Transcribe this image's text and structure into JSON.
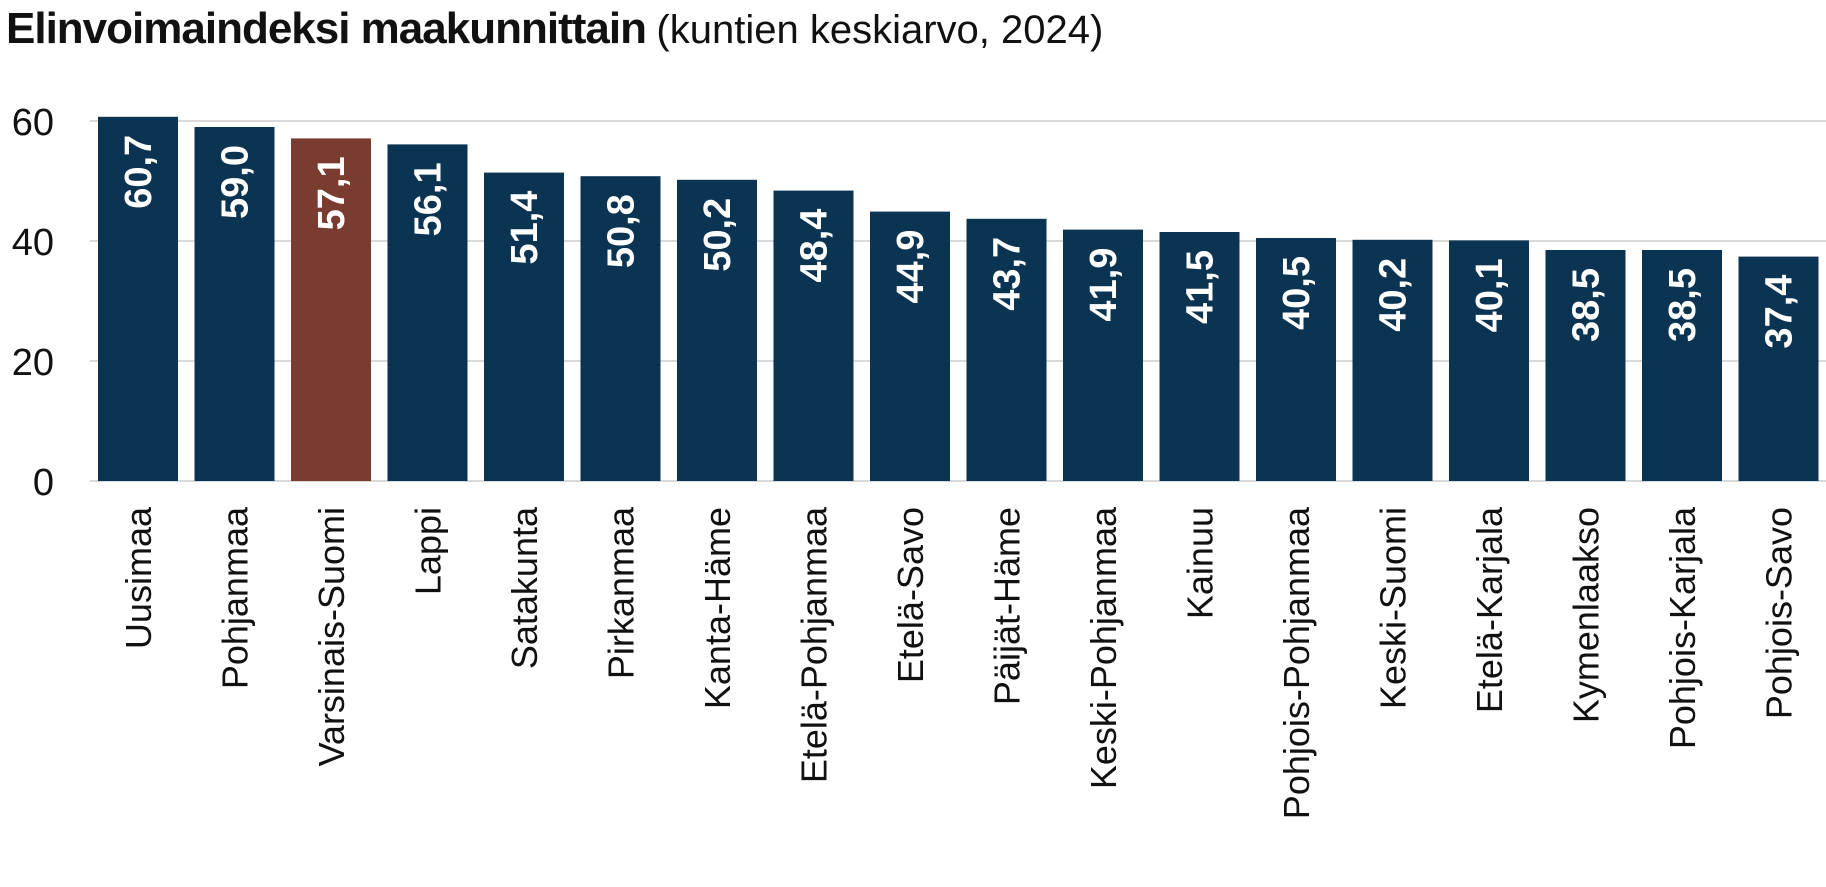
{
  "chart_data": {
    "type": "bar",
    "title": "Elinvoimaindeksi maakunnittain",
    "subtitle": "(kuntien keskiarvo, 2024)",
    "categories": [
      "Uusimaa",
      "Pohjanmaa",
      "Varsinais-Suomi",
      "Lappi",
      "Satakunta",
      "Pirkanmaa",
      "Kanta-Häme",
      "Etelä-Pohjanmaa",
      "Etelä-Savo",
      "Päijät-Häme",
      "Keski-Pohjanmaa",
      "Kainuu",
      "Pohjois-Pohjanmaa",
      "Keski-Suomi",
      "Etelä-Karjala",
      "Kymenlaakso",
      "Pohjois-Karjala",
      "Pohjois-Savo"
    ],
    "values": [
      60.7,
      59.0,
      57.1,
      56.1,
      51.4,
      50.8,
      50.2,
      48.4,
      44.9,
      43.7,
      41.9,
      41.5,
      40.5,
      40.2,
      40.1,
      38.5,
      38.5,
      37.4
    ],
    "value_labels": [
      "60,7",
      "59,0",
      "57,1",
      "56,1",
      "51,4",
      "50,8",
      "50,2",
      "48,4",
      "44,9",
      "43,7",
      "41,9",
      "41,5",
      "40,5",
      "40,2",
      "40,1",
      "38,5",
      "38,5",
      "37,4"
    ],
    "y_ticks": [
      0,
      20,
      40,
      60
    ],
    "ylim": [
      0,
      62
    ],
    "grid": true,
    "legend": "none",
    "colors": {
      "default": "#0b3352",
      "highlight": "#7a3b30",
      "grid": "#d9d9d9",
      "label": "#ffffff"
    },
    "highlight_category": "Varsinais-Suomi"
  }
}
